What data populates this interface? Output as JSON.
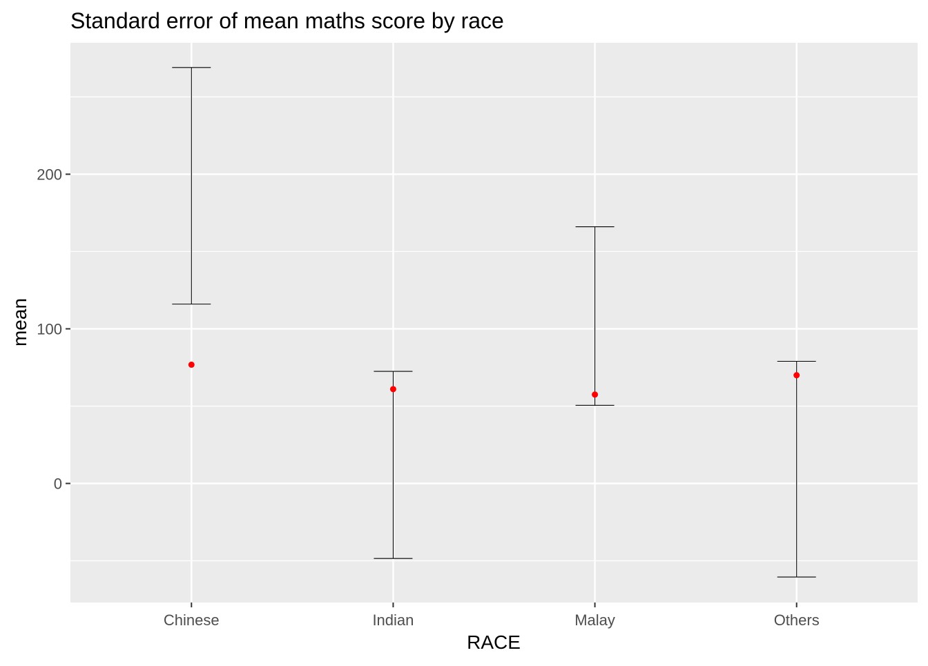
{
  "chart_data": {
    "type": "errorbar",
    "title": "Standard error of mean maths score by race",
    "xlabel": "RACE",
    "ylabel": "mean",
    "categories": [
      "Chinese",
      "Indian",
      "Malay",
      "Others"
    ],
    "means": [
      76.8,
      61.0,
      57.5,
      70.0
    ],
    "error_lower": [
      116.0,
      -48.5,
      50.5,
      -60.5
    ],
    "error_upper": [
      269.0,
      72.5,
      166.0,
      79.0
    ],
    "ylim": [
      -77,
      285
    ],
    "y_ticks": [
      0,
      100,
      200
    ],
    "y_tick_labels": [
      "0",
      "100",
      "200"
    ],
    "grid": true,
    "legend": "none",
    "colors": {
      "panel_background": "#ebebeb",
      "grid": "#ffffff",
      "point": "#ff0000",
      "errorbar": "#000000",
      "axis_text": "#4d4d4d",
      "title": "#000000"
    }
  }
}
